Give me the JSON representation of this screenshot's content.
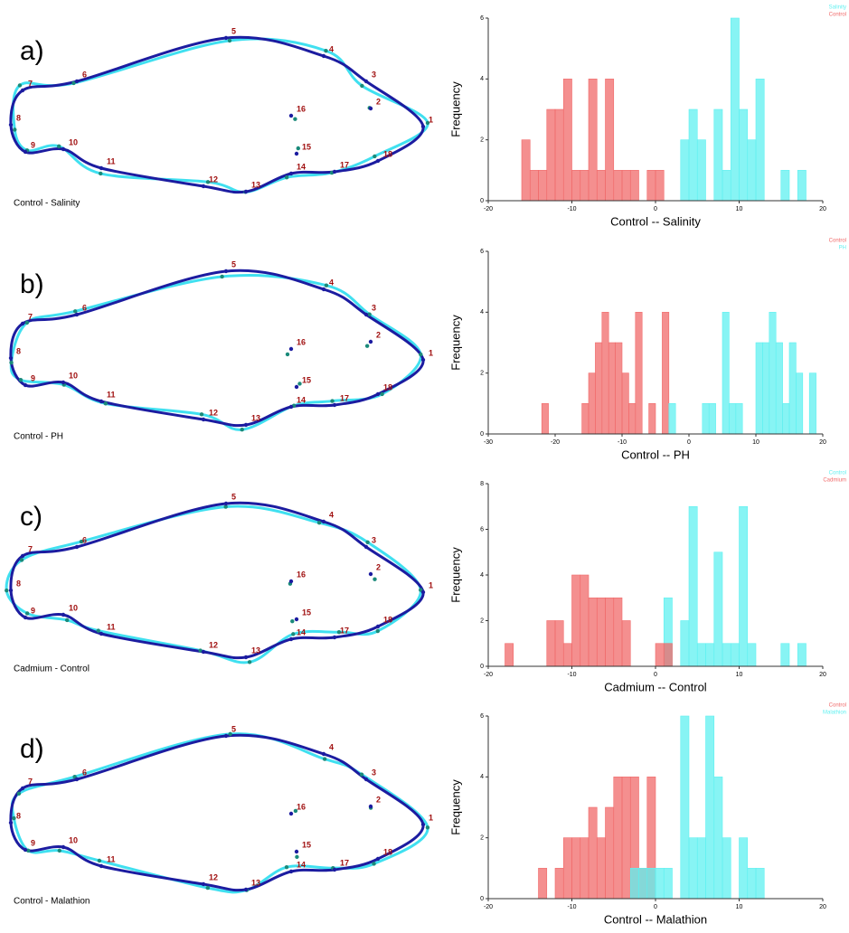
{
  "fish": [
    {
      "letter": "a)",
      "caption": "Control - Salinity",
      "landmarks": [
        1,
        2,
        3,
        4,
        5,
        6,
        7,
        8,
        9,
        10,
        11,
        12,
        13,
        14,
        15,
        16,
        17,
        18
      ]
    },
    {
      "letter": "b)",
      "caption": "Control - PH",
      "landmarks": [
        1,
        2,
        3,
        4,
        5,
        6,
        7,
        8,
        9,
        10,
        11,
        12,
        13,
        14,
        15,
        16,
        17,
        18
      ]
    },
    {
      "letter": "c)",
      "caption": "Cadmium - Control",
      "landmarks": [
        1,
        2,
        3,
        4,
        5,
        6,
        7,
        8,
        9,
        10,
        11,
        12,
        13,
        14,
        15,
        16,
        17,
        18
      ]
    },
    {
      "letter": "d)",
      "caption": "Control - Malathion",
      "landmarks": [
        1,
        2,
        3,
        4,
        5,
        6,
        7,
        8,
        9,
        10,
        11,
        12,
        13,
        14,
        15,
        16,
        17,
        18
      ]
    }
  ],
  "chart_data": [
    {
      "type": "histogram",
      "xlabel": "Control -- Salinity",
      "ylabel": "Frequency",
      "xlim": [
        -20,
        20
      ],
      "xticks": [
        -20,
        -10,
        0,
        10,
        20
      ],
      "ylim": [
        0,
        6
      ],
      "yticks": [
        0,
        2,
        4,
        6
      ],
      "series": [
        {
          "name": "Salinity",
          "color": "#5ff0f0",
          "bins": [
            3,
            4,
            5,
            6,
            7,
            8,
            9,
            10,
            11,
            12,
            13,
            14,
            15,
            16,
            17,
            18
          ],
          "values": [
            2,
            3,
            2,
            0,
            3,
            1,
            6,
            3,
            2,
            4,
            0,
            0,
            1,
            0,
            1
          ]
        },
        {
          "name": "Control",
          "color": "#f06a6a",
          "bins": [
            -16,
            -15,
            -14,
            -13,
            -12,
            -11,
            -10,
            -9,
            -8,
            -7,
            -6,
            -5,
            -4,
            -3,
            -2,
            -1,
            0,
            1
          ],
          "values": [
            2,
            1,
            1,
            3,
            3,
            4,
            1,
            1,
            4,
            1,
            4,
            1,
            1,
            1,
            0,
            1,
            1
          ]
        }
      ]
    },
    {
      "type": "histogram",
      "xlabel": "Control -- PH",
      "ylabel": "Frequency",
      "xlim": [
        -30,
        20
      ],
      "xticks": [
        -30,
        -20,
        -10,
        0,
        10,
        20
      ],
      "ylim": [
        0,
        6
      ],
      "yticks": [
        0,
        2,
        4,
        6
      ],
      "series": [
        {
          "name": "Control",
          "color": "#f06a6a",
          "bins": [
            -22,
            -21,
            -20,
            -19,
            -18,
            -17,
            -16,
            -15,
            -14,
            -13,
            -12,
            -11,
            -10,
            -9,
            -8,
            -7,
            -6,
            -5,
            -4,
            -3
          ],
          "values": [
            1,
            0,
            0,
            0,
            0,
            0,
            1,
            2,
            3,
            4,
            3,
            3,
            2,
            1,
            4,
            0,
            1,
            0,
            4
          ]
        },
        {
          "name": "PH",
          "color": "#5ff0f0",
          "bins": [
            -3,
            -2,
            -1,
            0,
            1,
            2,
            3,
            4,
            5,
            6,
            7,
            8,
            9,
            10,
            11,
            12,
            13,
            14,
            15,
            16,
            17,
            18,
            19
          ],
          "values": [
            1,
            0,
            0,
            0,
            0,
            1,
            1,
            0,
            4,
            1,
            1,
            0,
            0,
            3,
            3,
            4,
            3,
            1,
            3,
            2,
            0,
            2
          ]
        }
      ]
    },
    {
      "type": "histogram",
      "xlabel": "Cadmium -- Control",
      "ylabel": "Frequency",
      "xlim": [
        -20,
        20
      ],
      "xticks": [
        -20,
        -10,
        0,
        10,
        20
      ],
      "ylim": [
        0,
        8
      ],
      "yticks": [
        0,
        2,
        4,
        6,
        8
      ],
      "series": [
        {
          "name": "Control",
          "color": "#5ff0f0",
          "bins": [
            1,
            2,
            3,
            4,
            5,
            6,
            7,
            8,
            9,
            10,
            11,
            12,
            13,
            14,
            15,
            16,
            17,
            18
          ],
          "values": [
            3,
            0,
            2,
            7,
            1,
            1,
            5,
            1,
            1,
            7,
            1,
            0,
            0,
            0,
            1,
            0,
            1
          ]
        },
        {
          "name": "Cadmium",
          "color": "#f06a6a",
          "bins": [
            -18,
            -17,
            -16,
            -15,
            -14,
            -13,
            -12,
            -11,
            -10,
            -9,
            -8,
            -7,
            -6,
            -5,
            -4,
            -3,
            -2,
            -1,
            0,
            1,
            2
          ],
          "values": [
            1,
            0,
            0,
            0,
            0,
            2,
            2,
            1,
            4,
            4,
            3,
            3,
            3,
            3,
            2,
            0,
            0,
            0,
            1,
            1
          ]
        }
      ]
    },
    {
      "type": "histogram",
      "xlabel": "Control -- Malathion",
      "ylabel": "Frequency",
      "xlim": [
        -20,
        20
      ],
      "xticks": [
        -20,
        -10,
        0,
        10,
        20
      ],
      "ylim": [
        0,
        6
      ],
      "yticks": [
        0,
        2,
        4,
        6
      ],
      "series": [
        {
          "name": "Control",
          "color": "#f06a6a",
          "bins": [
            -14,
            -13,
            -12,
            -11,
            -10,
            -9,
            -8,
            -7,
            -6,
            -5,
            -4,
            -3,
            -2,
            -1,
            0
          ],
          "values": [
            1,
            0,
            1,
            2,
            2,
            2,
            3,
            2,
            3,
            4,
            4,
            4,
            1,
            4
          ]
        },
        {
          "name": "Malathion",
          "color": "#5ff0f0",
          "bins": [
            -3,
            -2,
            -1,
            0,
            1,
            2,
            3,
            4,
            5,
            6,
            7,
            8,
            9,
            10,
            11,
            12,
            13
          ],
          "values": [
            1,
            1,
            1,
            1,
            1,
            0,
            6,
            2,
            2,
            6,
            4,
            2,
            0,
            2,
            1,
            1
          ]
        }
      ]
    }
  ]
}
